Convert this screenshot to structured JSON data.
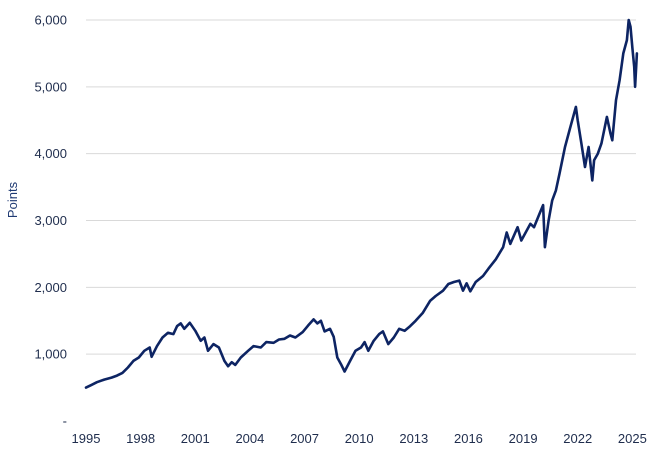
{
  "chart_data": {
    "type": "line",
    "ylabel": "Points",
    "xlim": [
      1995.0,
      2025.2
    ],
    "ylim": [
      0,
      6000
    ],
    "grid": true,
    "legend": "none",
    "colors": {
      "line": "#0d2463",
      "grid": "#d9d9d9",
      "text": "#1f2d4d"
    },
    "x_ticks": [
      {
        "value": 1995,
        "label": "1995"
      },
      {
        "value": 1998,
        "label": "1998"
      },
      {
        "value": 2001,
        "label": "2001"
      },
      {
        "value": 2004,
        "label": "2004"
      },
      {
        "value": 2007,
        "label": "2007"
      },
      {
        "value": 2010,
        "label": "2010"
      },
      {
        "value": 2013,
        "label": "2013"
      },
      {
        "value": 2016,
        "label": "2016"
      },
      {
        "value": 2019,
        "label": "2019"
      },
      {
        "value": 2022,
        "label": "2022"
      },
      {
        "value": 2025,
        "label": "2025"
      }
    ],
    "y_ticks": [
      {
        "value": 0,
        "label": "-"
      },
      {
        "value": 1000,
        "label": "1,000"
      },
      {
        "value": 2000,
        "label": "2,000"
      },
      {
        "value": 3000,
        "label": "3,000"
      },
      {
        "value": 4000,
        "label": "4,000"
      },
      {
        "value": 5000,
        "label": "5,000"
      },
      {
        "value": 6000,
        "label": "6,000"
      }
    ],
    "series": [
      {
        "points": [
          [
            1995.0,
            500
          ],
          [
            1995.3,
            540
          ],
          [
            1995.6,
            580
          ],
          [
            1996.0,
            620
          ],
          [
            1996.4,
            650
          ],
          [
            1996.7,
            680
          ],
          [
            1997.0,
            720
          ],
          [
            1997.3,
            800
          ],
          [
            1997.6,
            900
          ],
          [
            1997.9,
            950
          ],
          [
            1998.2,
            1050
          ],
          [
            1998.5,
            1100
          ],
          [
            1998.6,
            960
          ],
          [
            1998.9,
            1120
          ],
          [
            1999.2,
            1250
          ],
          [
            1999.5,
            1320
          ],
          [
            1999.8,
            1300
          ],
          [
            2000.0,
            1420
          ],
          [
            2000.2,
            1460
          ],
          [
            2000.4,
            1380
          ],
          [
            2000.7,
            1470
          ],
          [
            2001.0,
            1350
          ],
          [
            2001.3,
            1200
          ],
          [
            2001.5,
            1250
          ],
          [
            2001.7,
            1050
          ],
          [
            2002.0,
            1150
          ],
          [
            2002.3,
            1100
          ],
          [
            2002.6,
            900
          ],
          [
            2002.8,
            820
          ],
          [
            2003.0,
            880
          ],
          [
            2003.2,
            840
          ],
          [
            2003.5,
            950
          ],
          [
            2003.9,
            1050
          ],
          [
            2004.2,
            1120
          ],
          [
            2004.6,
            1100
          ],
          [
            2004.9,
            1180
          ],
          [
            2005.3,
            1170
          ],
          [
            2005.6,
            1220
          ],
          [
            2005.9,
            1230
          ],
          [
            2006.2,
            1280
          ],
          [
            2006.5,
            1250
          ],
          [
            2006.9,
            1330
          ],
          [
            2007.2,
            1430
          ],
          [
            2007.5,
            1520
          ],
          [
            2007.7,
            1460
          ],
          [
            2007.9,
            1500
          ],
          [
            2008.1,
            1340
          ],
          [
            2008.4,
            1380
          ],
          [
            2008.6,
            1260
          ],
          [
            2008.8,
            950
          ],
          [
            2009.0,
            850
          ],
          [
            2009.2,
            740
          ],
          [
            2009.5,
            900
          ],
          [
            2009.8,
            1050
          ],
          [
            2010.1,
            1100
          ],
          [
            2010.3,
            1180
          ],
          [
            2010.5,
            1050
          ],
          [
            2010.8,
            1200
          ],
          [
            2011.1,
            1300
          ],
          [
            2011.3,
            1340
          ],
          [
            2011.6,
            1150
          ],
          [
            2011.9,
            1250
          ],
          [
            2012.2,
            1380
          ],
          [
            2012.5,
            1350
          ],
          [
            2012.8,
            1420
          ],
          [
            2013.1,
            1500
          ],
          [
            2013.5,
            1620
          ],
          [
            2013.9,
            1800
          ],
          [
            2014.2,
            1870
          ],
          [
            2014.6,
            1950
          ],
          [
            2014.9,
            2050
          ],
          [
            2015.2,
            2080
          ],
          [
            2015.5,
            2100
          ],
          [
            2015.7,
            1950
          ],
          [
            2015.9,
            2060
          ],
          [
            2016.1,
            1940
          ],
          [
            2016.4,
            2080
          ],
          [
            2016.8,
            2170
          ],
          [
            2017.1,
            2280
          ],
          [
            2017.5,
            2420
          ],
          [
            2017.9,
            2600
          ],
          [
            2018.1,
            2820
          ],
          [
            2018.3,
            2650
          ],
          [
            2018.7,
            2900
          ],
          [
            2018.9,
            2700
          ],
          [
            2019.1,
            2800
          ],
          [
            2019.4,
            2950
          ],
          [
            2019.6,
            2900
          ],
          [
            2019.9,
            3100
          ],
          [
            2020.1,
            3230
          ],
          [
            2020.2,
            2600
          ],
          [
            2020.4,
            3000
          ],
          [
            2020.6,
            3300
          ],
          [
            2020.8,
            3450
          ],
          [
            2021.0,
            3700
          ],
          [
            2021.3,
            4100
          ],
          [
            2021.6,
            4400
          ],
          [
            2021.9,
            4700
          ],
          [
            2022.0,
            4500
          ],
          [
            2022.2,
            4150
          ],
          [
            2022.4,
            3800
          ],
          [
            2022.6,
            4100
          ],
          [
            2022.8,
            3600
          ],
          [
            2022.9,
            3900
          ],
          [
            2023.1,
            4000
          ],
          [
            2023.3,
            4150
          ],
          [
            2023.6,
            4550
          ],
          [
            2023.8,
            4300
          ],
          [
            2023.9,
            4200
          ],
          [
            2024.1,
            4800
          ],
          [
            2024.3,
            5100
          ],
          [
            2024.5,
            5500
          ],
          [
            2024.7,
            5700
          ],
          [
            2024.8,
            6000
          ],
          [
            2024.9,
            5900
          ],
          [
            2025.0,
            5580
          ],
          [
            2025.1,
            5300
          ],
          [
            2025.15,
            5000
          ],
          [
            2025.25,
            5500
          ]
        ]
      }
    ]
  }
}
